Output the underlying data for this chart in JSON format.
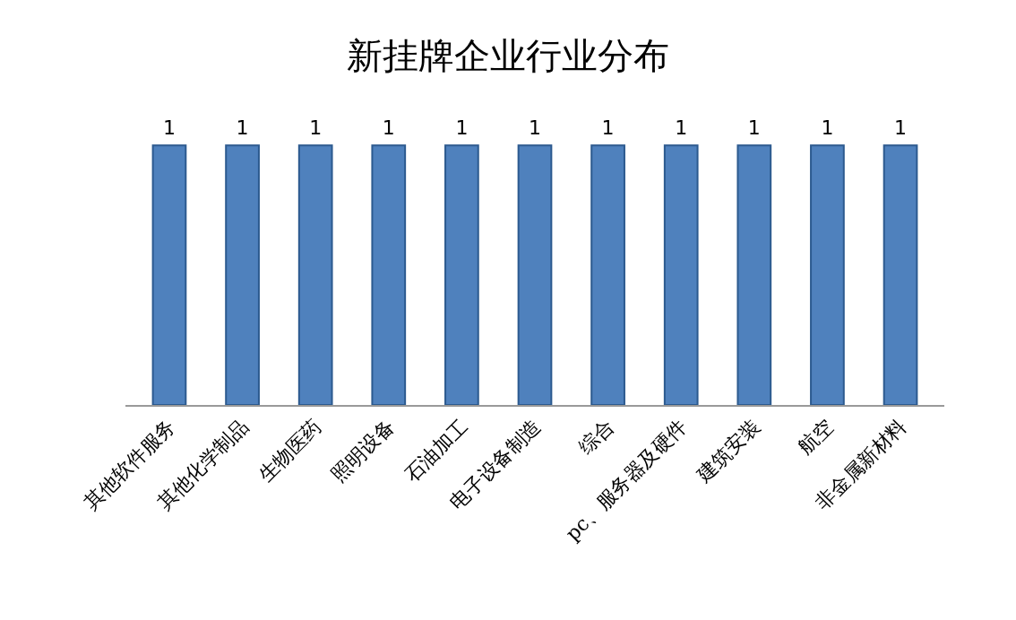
{
  "chart_data": {
    "type": "bar",
    "title": "新挂牌企业行业分布",
    "categories": [
      "其他软件服务",
      "其他化学制品",
      "生物医药",
      "照明设备",
      "石油加工",
      "电子设备制造",
      "综合",
      "pc、服务器及硬件",
      "建筑安装",
      "航空",
      "非金属新材料"
    ],
    "values": [
      1,
      1,
      1,
      1,
      1,
      1,
      1,
      1,
      1,
      1,
      1
    ],
    "color": "#4f81bd",
    "data_labels": true,
    "legend": false
  }
}
